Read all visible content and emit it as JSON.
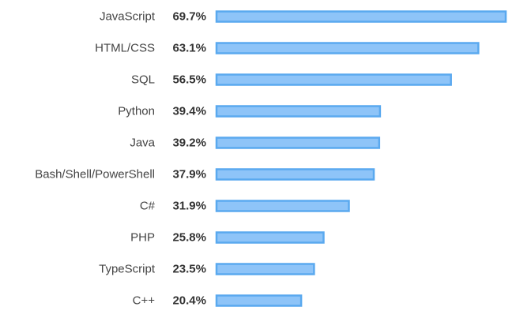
{
  "chart_data": {
    "type": "bar",
    "orientation": "horizontal",
    "title": "",
    "xlabel": "",
    "ylabel": "",
    "unit": "%",
    "categories": [
      "JavaScript",
      "HTML/CSS",
      "SQL",
      "Python",
      "Java",
      "Bash/Shell/PowerShell",
      "C#",
      "PHP",
      "TypeScript",
      "C++"
    ],
    "values": [
      69.7,
      63.1,
      56.5,
      39.4,
      39.2,
      37.9,
      31.9,
      25.8,
      23.5,
      20.4
    ],
    "value_labels": [
      "69.7%",
      "63.1%",
      "56.5%",
      "39.4%",
      "39.2%",
      "37.9%",
      "31.9%",
      "25.8%",
      "23.5%",
      "20.4%"
    ],
    "xlim": [
      0,
      69.7
    ],
    "grid": false,
    "legend": "none",
    "colors": {
      "bar_fill": "#8ec4f8",
      "bar_stroke": "#5aa9ef",
      "category_text": "#444444",
      "value_text": "#333333"
    }
  }
}
